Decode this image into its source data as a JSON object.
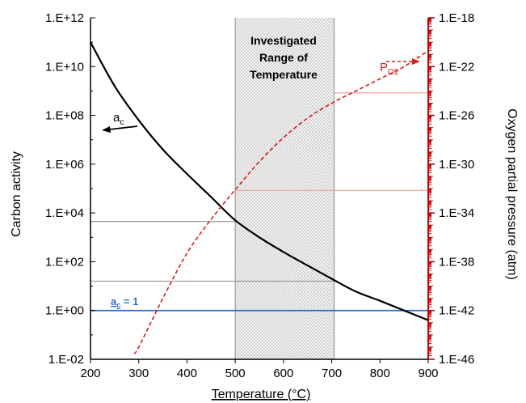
{
  "chart_data": {
    "type": "line",
    "title": "",
    "xlabel": "Temperature (°C)",
    "ylabel_left": "Carbon activity",
    "ylabel_right": "Oxygen partial pressure (atm)",
    "xlim": [
      200,
      900
    ],
    "x_ticks": [
      200,
      300,
      400,
      500,
      600,
      700,
      800,
      900
    ],
    "y_left": {
      "scale": "log",
      "lim": [
        0.01,
        1000000000000.0
      ],
      "tick_labels": [
        "1.E-02",
        "1.E+00",
        "1.E+02",
        "1.E+04",
        "1.E+06",
        "1.E+08",
        "1.E+10",
        "1.E+12"
      ]
    },
    "y_right": {
      "scale": "log",
      "lim": [
        1e-46,
        1e-18
      ],
      "tick_labels": [
        "1.E-46",
        "1.E-42",
        "1.E-38",
        "1.E-34",
        "1.E-30",
        "1.E-26",
        "1.E-22",
        "1.E-18"
      ]
    },
    "grid": false,
    "series": [
      {
        "label": "a_c",
        "axis": "left",
        "color": "#000000",
        "style": "solid",
        "x": [
          200,
          250,
          300,
          350,
          400,
          450,
          500,
          550,
          600,
          650,
          700,
          750,
          800,
          850,
          900
        ],
        "y": [
          100000000000.0,
          1600000000.0,
          63000000.0,
          4000000.0,
          400000.0,
          45000.0,
          5000.0,
          1000.0,
          250,
          70,
          20,
          6,
          2.5,
          1,
          0.4
        ]
      },
      {
        "label": "P_O2",
        "axis": "right",
        "color": "#d42020",
        "style": "dashed",
        "x": [
          290,
          300,
          350,
          400,
          450,
          500,
          550,
          600,
          650,
          700,
          750,
          800,
          850,
          900
        ],
        "y": [
          3e-46,
          1e-45,
          1e-41,
          5e-38,
          3e-35,
          8e-33,
          1.6e-30,
          1.5e-28,
          6e-27,
          1e-25,
          1e-24,
          1e-23,
          1e-22,
          2e-21
        ]
      }
    ],
    "shaded_region": {
      "x": [
        500,
        705
      ],
      "label_lines": [
        "Investigated",
        "Range of",
        "Temperature"
      ]
    },
    "reference_lines": [
      {
        "label": "a_c = 1",
        "axis": "left",
        "y": 1,
        "x_range": [
          200,
          900
        ],
        "color": "#2e6fc4"
      },
      {
        "axis": "left",
        "y": 4500,
        "x_range": [
          200,
          500
        ],
        "color": "#999999"
      },
      {
        "axis": "left",
        "y": 16,
        "x_range": [
          200,
          705
        ],
        "color": "#999999"
      },
      {
        "axis": "right",
        "y": 7e-33,
        "x_range": [
          500,
          900
        ],
        "color": "#f0a0a0"
      },
      {
        "axis": "right",
        "y": 7e-25,
        "x_range": [
          705,
          900
        ],
        "color": "#f0a0a0"
      }
    ],
    "annotations": {
      "ac_label_main": "a",
      "ac_label_sub": "c",
      "po2_label_main": "P",
      "po2_label_sub": "O2",
      "ref_label_main": "a",
      "ref_label_sub": "c",
      "ref_label_rest": " = 1"
    },
    "colors": {
      "left_axis": "#000000",
      "right_axis": "#c00000",
      "shade_edge": "#999999",
      "ac_curve": "#000000",
      "po2_curve": "#d42020",
      "ref_line": "#2e6fc4"
    }
  }
}
